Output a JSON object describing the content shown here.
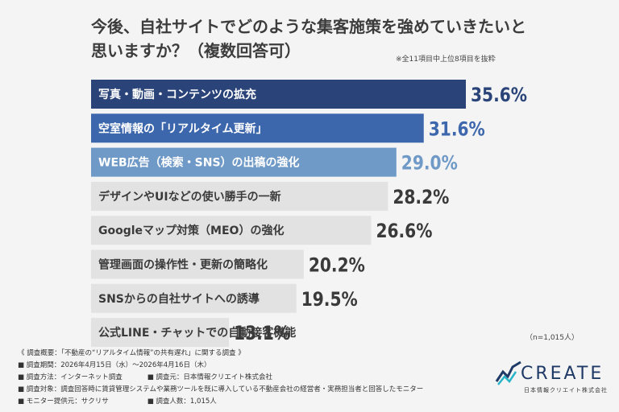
{
  "header": {
    "title_line1": "今後、自社サイトでどのような集客施策を強めていきたいと",
    "title_line2": "思いますか？（複数回答可）",
    "note": "※全11項目中上位8項目を抜粋"
  },
  "chart_data": {
    "type": "bar",
    "orientation": "horizontal",
    "categories": [
      "写真・動画・コンテンツの拡充",
      "空室情報の「リアルタイム更新」",
      "WEB広告（検索・SNS）の出稿の強化",
      "デザインやUIなどの使い勝手の一新",
      "Googleマップ対策（MEO）の強化",
      "管理画面の操作性・更新の簡略化",
      "SNSからの自社サイトへの誘導",
      "公式LINE・チャットでの自動接客機能"
    ],
    "values": [
      35.6,
      31.6,
      29.0,
      28.2,
      26.6,
      20.2,
      19.5,
      13.1
    ],
    "value_labels": [
      "35.6%",
      "31.6%",
      "29.0%",
      "28.2%",
      "26.6%",
      "20.2%",
      "19.5%",
      "13.1%"
    ],
    "bar_colors": [
      "#2a4479",
      "#3c67ad",
      "#6f99c6",
      "#e2e2e2",
      "#e2e2e2",
      "#e2e2e2",
      "#e2e2e2",
      "#e2e2e2"
    ],
    "label_text_colors": [
      "#ffffff",
      "#ffffff",
      "#ffffff",
      "#3a3a3a",
      "#3a3a3a",
      "#3a3a3a",
      "#3a3a3a",
      "#3a3a3a"
    ],
    "value_text_colors": [
      "#2a4479",
      "#3c67ad",
      "#6f99c6",
      "#3a3a3a",
      "#3a3a3a",
      "#3a3a3a",
      "#3a3a3a",
      "#3a3a3a"
    ],
    "xlim": [
      0,
      35.6
    ],
    "grid": false
  },
  "sample_size": "（n=1,015人）",
  "survey": {
    "overview": "《 調査概要：「不動産の“リアルタイム情報”の共有遅れ」に関する調査 》",
    "period": "■ 調査期間：2026年4月15日（水）〜2026年4月16日（木）",
    "method": "■ 調査方法：インターネット調査",
    "organizer": "■ 調査元：日本情報クリエイト株式会社",
    "target": "■ 調査対象：調査回答時に賃貸管理システムや業務ツールを既に導入している不動産会社の経営者・実務担当者と回答したモニター",
    "provider": "■ モニター提供元：サクリサ",
    "respondents": "■ 調査人数：1,015人"
  },
  "logo": {
    "word": "CREATE",
    "company": "日本情報クリエイト株式会社",
    "colors": [
      "#1f3a66",
      "#28b5c8"
    ]
  }
}
